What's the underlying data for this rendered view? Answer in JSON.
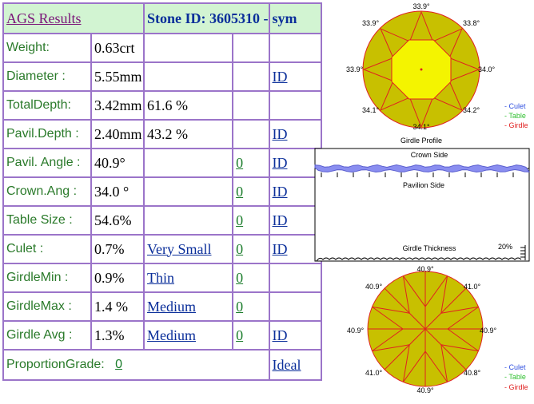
{
  "header": {
    "title": "AGS  Results",
    "stone_id": "Stone ID:  3605310 -",
    "sym": "sym"
  },
  "rows": [
    {
      "label": "Weight:",
      "value": "0.63crt",
      "pct": "",
      "desc": "",
      "grade": "",
      "id": ""
    },
    {
      "label": "Diameter :",
      "value": "5.55mm",
      "pct": "",
      "desc": "",
      "grade": "",
      "id": "ID"
    },
    {
      "label": "TotalDepth:",
      "value": "3.42mm",
      "pct": "61.6 %",
      "desc": "",
      "grade": "",
      "id": ""
    },
    {
      "label": "Pavil.Depth :",
      "value": "2.40mm",
      "pct": "43.2 %",
      "desc": "",
      "grade": "",
      "id": "ID"
    },
    {
      "label": "Pavil. Angle :",
      "value": "40.9°",
      "pct": "",
      "desc": "",
      "grade": "0",
      "id": "ID"
    },
    {
      "label": "Crown.Ang :",
      "value": "34.0 °",
      "pct": "",
      "desc": "",
      "grade": "0",
      "id": "ID"
    },
    {
      "label": "Table Size :",
      "value": "54.6%",
      "pct": "",
      "desc": "",
      "grade": "0",
      "id": "ID"
    },
    {
      "label": "Culet :",
      "value": "0.7%",
      "pct": "",
      "desc": "Very Small",
      "grade": "0",
      "id": "ID"
    },
    {
      "label": "GirdleMin :",
      "value": "0.9%",
      "pct": "",
      "desc": "Thin",
      "grade": "0",
      "id": ""
    },
    {
      "label": "GirdleMax :",
      "value": "1.4 %",
      "pct": "",
      "desc": "Medium",
      "grade": "0",
      "id": ""
    },
    {
      "label": "Girdle Avg :",
      "value": "1.3%",
      "pct": "",
      "desc": "Medium",
      "grade": "0",
      "id": "ID"
    }
  ],
  "proportion": {
    "label": "ProportionGrade:",
    "grade": "0",
    "result": "Ideal"
  },
  "crown_view": {
    "angles": {
      "top": "33.9°",
      "top_right": "33.8°",
      "right": "34.0°",
      "bottom_right": "34.2°",
      "bottom": "34.1°",
      "bottom_left": "34.1°",
      "left": "33.9°",
      "top_left": "33.9°"
    }
  },
  "profile": {
    "title": "Girdle Profile",
    "crown_side": "Crown Side",
    "pavilion_side": "Pavilion Side",
    "girdle_thickness": "Girdle Thickness",
    "thickness_pct": "20%"
  },
  "pavilion_view": {
    "angles": {
      "top": "40.9°",
      "top_right": "41.0°",
      "right": "40.9°",
      "bottom_right": "40.8°",
      "bottom": "40.9°",
      "bottom_left": "41.0°",
      "left": "40.9°",
      "top_left": "40.9°"
    }
  },
  "legend": {
    "culet": "- Culet",
    "table": "- Table",
    "girdle": "- Girdle"
  },
  "colors": {
    "border": "#9b74c9",
    "header_bg": "#d2f4d2",
    "label_green": "#2a7a2a",
    "link_blue": "#0a2e9a",
    "stone_yellow": "#e8e800",
    "stone_olive": "#c8c000",
    "facet_red": "#e02020",
    "culet_blue": "#3050e0",
    "table_green": "#30c030"
  }
}
